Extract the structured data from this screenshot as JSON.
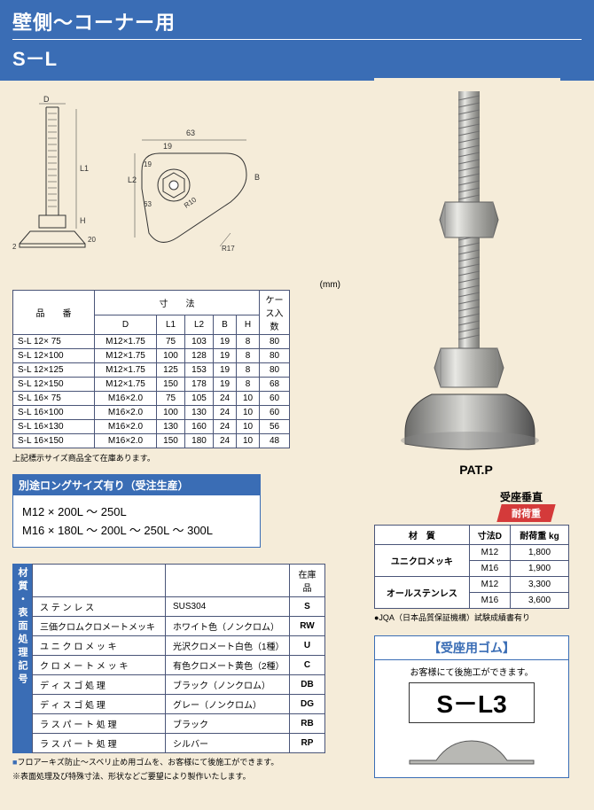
{
  "header": {
    "title1": "壁側～コーナー用",
    "title2": "S－L"
  },
  "diagram_labels": {
    "D": "D",
    "L1": "L1",
    "L2": "L2",
    "H": "H",
    "B": "B",
    "t2": "2",
    "h20": "20",
    "w63": "63",
    "w19": "19",
    "h19": "19",
    "h63": "63",
    "R10": "R10",
    "R17": "R17"
  },
  "unit": "(mm)",
  "spec_table": {
    "hdr_product": "品　　番",
    "hdr_dim": "寸　　法",
    "hdr_case": "ケース入数",
    "cols": [
      "D",
      "L1",
      "L2",
      "B",
      "H"
    ],
    "rows": [
      [
        "S-L  12× 75",
        "M12×1.75",
        "75",
        "103",
        "19",
        "8",
        "80"
      ],
      [
        "S-L  12×100",
        "M12×1.75",
        "100",
        "128",
        "19",
        "8",
        "80"
      ],
      [
        "S-L  12×125",
        "M12×1.75",
        "125",
        "153",
        "19",
        "8",
        "80"
      ],
      [
        "S-L  12×150",
        "M12×1.75",
        "150",
        "178",
        "19",
        "8",
        "68"
      ],
      [
        "S-L  16× 75",
        "M16×2.0",
        "75",
        "105",
        "24",
        "10",
        "60"
      ],
      [
        "S-L  16×100",
        "M16×2.0",
        "100",
        "130",
        "24",
        "10",
        "60"
      ],
      [
        "S-L  16×130",
        "M16×2.0",
        "130",
        "160",
        "24",
        "10",
        "56"
      ],
      [
        "S-L  16×150",
        "M16×2.0",
        "150",
        "180",
        "24",
        "10",
        "48"
      ]
    ]
  },
  "spec_note": "上記標示サイズ商品全て在庫あります。",
  "long_size": {
    "header": "別途ロングサイズ有り（受注生産）",
    "line1": "M12 × 200L ～ 250L",
    "line2": "M16 × 180L ～ 200L ～ 250L ～ 300L"
  },
  "material": {
    "side_label": "材質・表面処理記号",
    "hdr_stock": "在庫品",
    "rows": [
      [
        "ス テ ン レ ス",
        "SUS304",
        "S"
      ],
      [
        "三価クロムクロメートメッキ",
        "ホワイト色（ノンクロム）",
        "RW"
      ],
      [
        "ユ ニ ク ロ メ ッ キ",
        "光沢クロメート白色（1種）",
        "U"
      ],
      [
        "ク ロ メ ー ト メ ッ キ",
        "有色クロメート黄色（2種）",
        "C"
      ],
      [
        "デ ィ ス ゴ 処 理",
        "ブラック（ノンクロム）",
        "DB"
      ],
      [
        "デ ィ ス ゴ 処 理",
        "グレー（ノンクロム）",
        "DG"
      ],
      [
        "ラ ス パ ー ト 処 理",
        "ブラック",
        "RB"
      ],
      [
        "ラ ス パ ー ト 処 理",
        "シルバー",
        "RP"
      ]
    ]
  },
  "footer1": "フロアーキズ防止～スベリ止め用ゴムを、お客様にて後施工ができます。",
  "footer2": "※表面処理及び特殊寸法、形状などご要望により製作いたします。",
  "patp": "PAT.P",
  "load": {
    "sub": "受座垂直",
    "red_hdr": "耐荷重",
    "cols": [
      "材　質",
      "寸法D",
      "耐荷重  kg"
    ],
    "rows": [
      [
        "ユニクロメッキ",
        "M12",
        "1,800"
      ],
      [
        "",
        "M16",
        "1,900"
      ],
      [
        "オールステンレス",
        "M12",
        "3,300"
      ],
      [
        "",
        "M16",
        "3,600"
      ]
    ],
    "note": "●JQA（日本品質保証機構）試験成績書有り"
  },
  "rubber": {
    "header": "【受座用ゴム】",
    "msg": "お客様にて後施工ができます。",
    "code": "S－L3"
  }
}
